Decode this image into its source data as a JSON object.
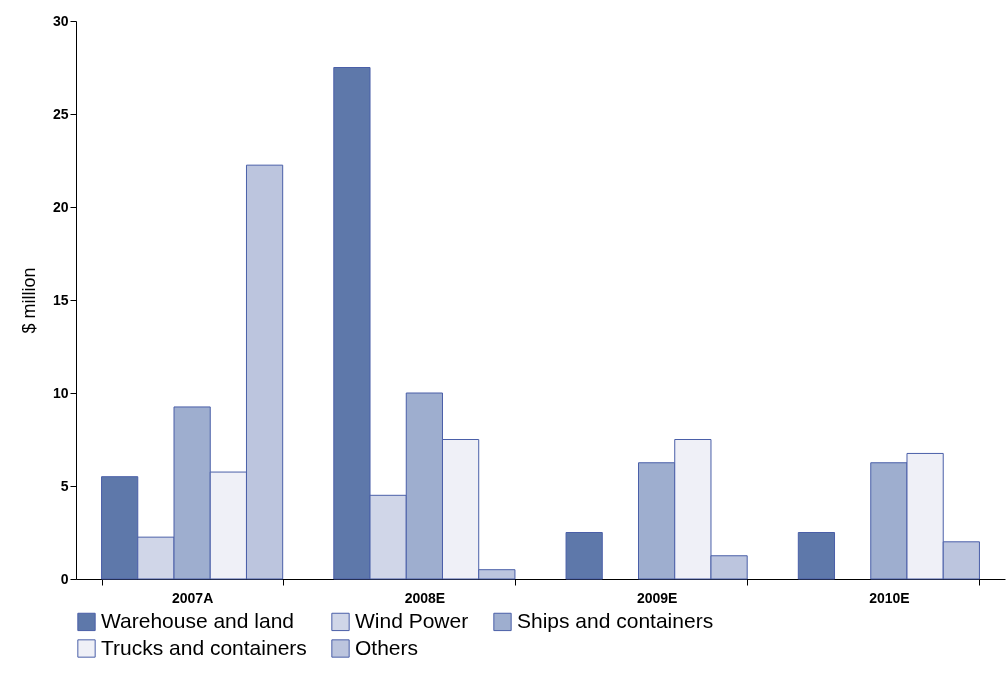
{
  "chart_data": {
    "type": "bar",
    "ylabel": "$ million",
    "categories": [
      "2007A",
      "2008E",
      "2009E",
      "2010E"
    ],
    "series": [
      {
        "name": "Warehouse and land",
        "color": "#5e78aa",
        "values": [
          5.5,
          27.5,
          2.5,
          2.5
        ]
      },
      {
        "name": "Wind Power",
        "color": "#d0d6e8",
        "values": [
          2.25,
          4.5,
          null,
          null
        ]
      },
      {
        "name": "Ships and containers",
        "color": "#9eaecf",
        "values": [
          9.25,
          10,
          6.25,
          6.25
        ]
      },
      {
        "name": "Trucks and containers",
        "color": "#eff0f7",
        "values": [
          5.75,
          7.5,
          7.5,
          6.75
        ]
      },
      {
        "name": "Others",
        "color": "#bcc5de",
        "values": [
          22.25,
          0.5,
          1.25,
          2
        ]
      }
    ],
    "ylim": [
      0,
      30
    ],
    "yticks": [
      0,
      5,
      10,
      15,
      20,
      25,
      30
    ],
    "grid": false,
    "legend": "bottom"
  }
}
